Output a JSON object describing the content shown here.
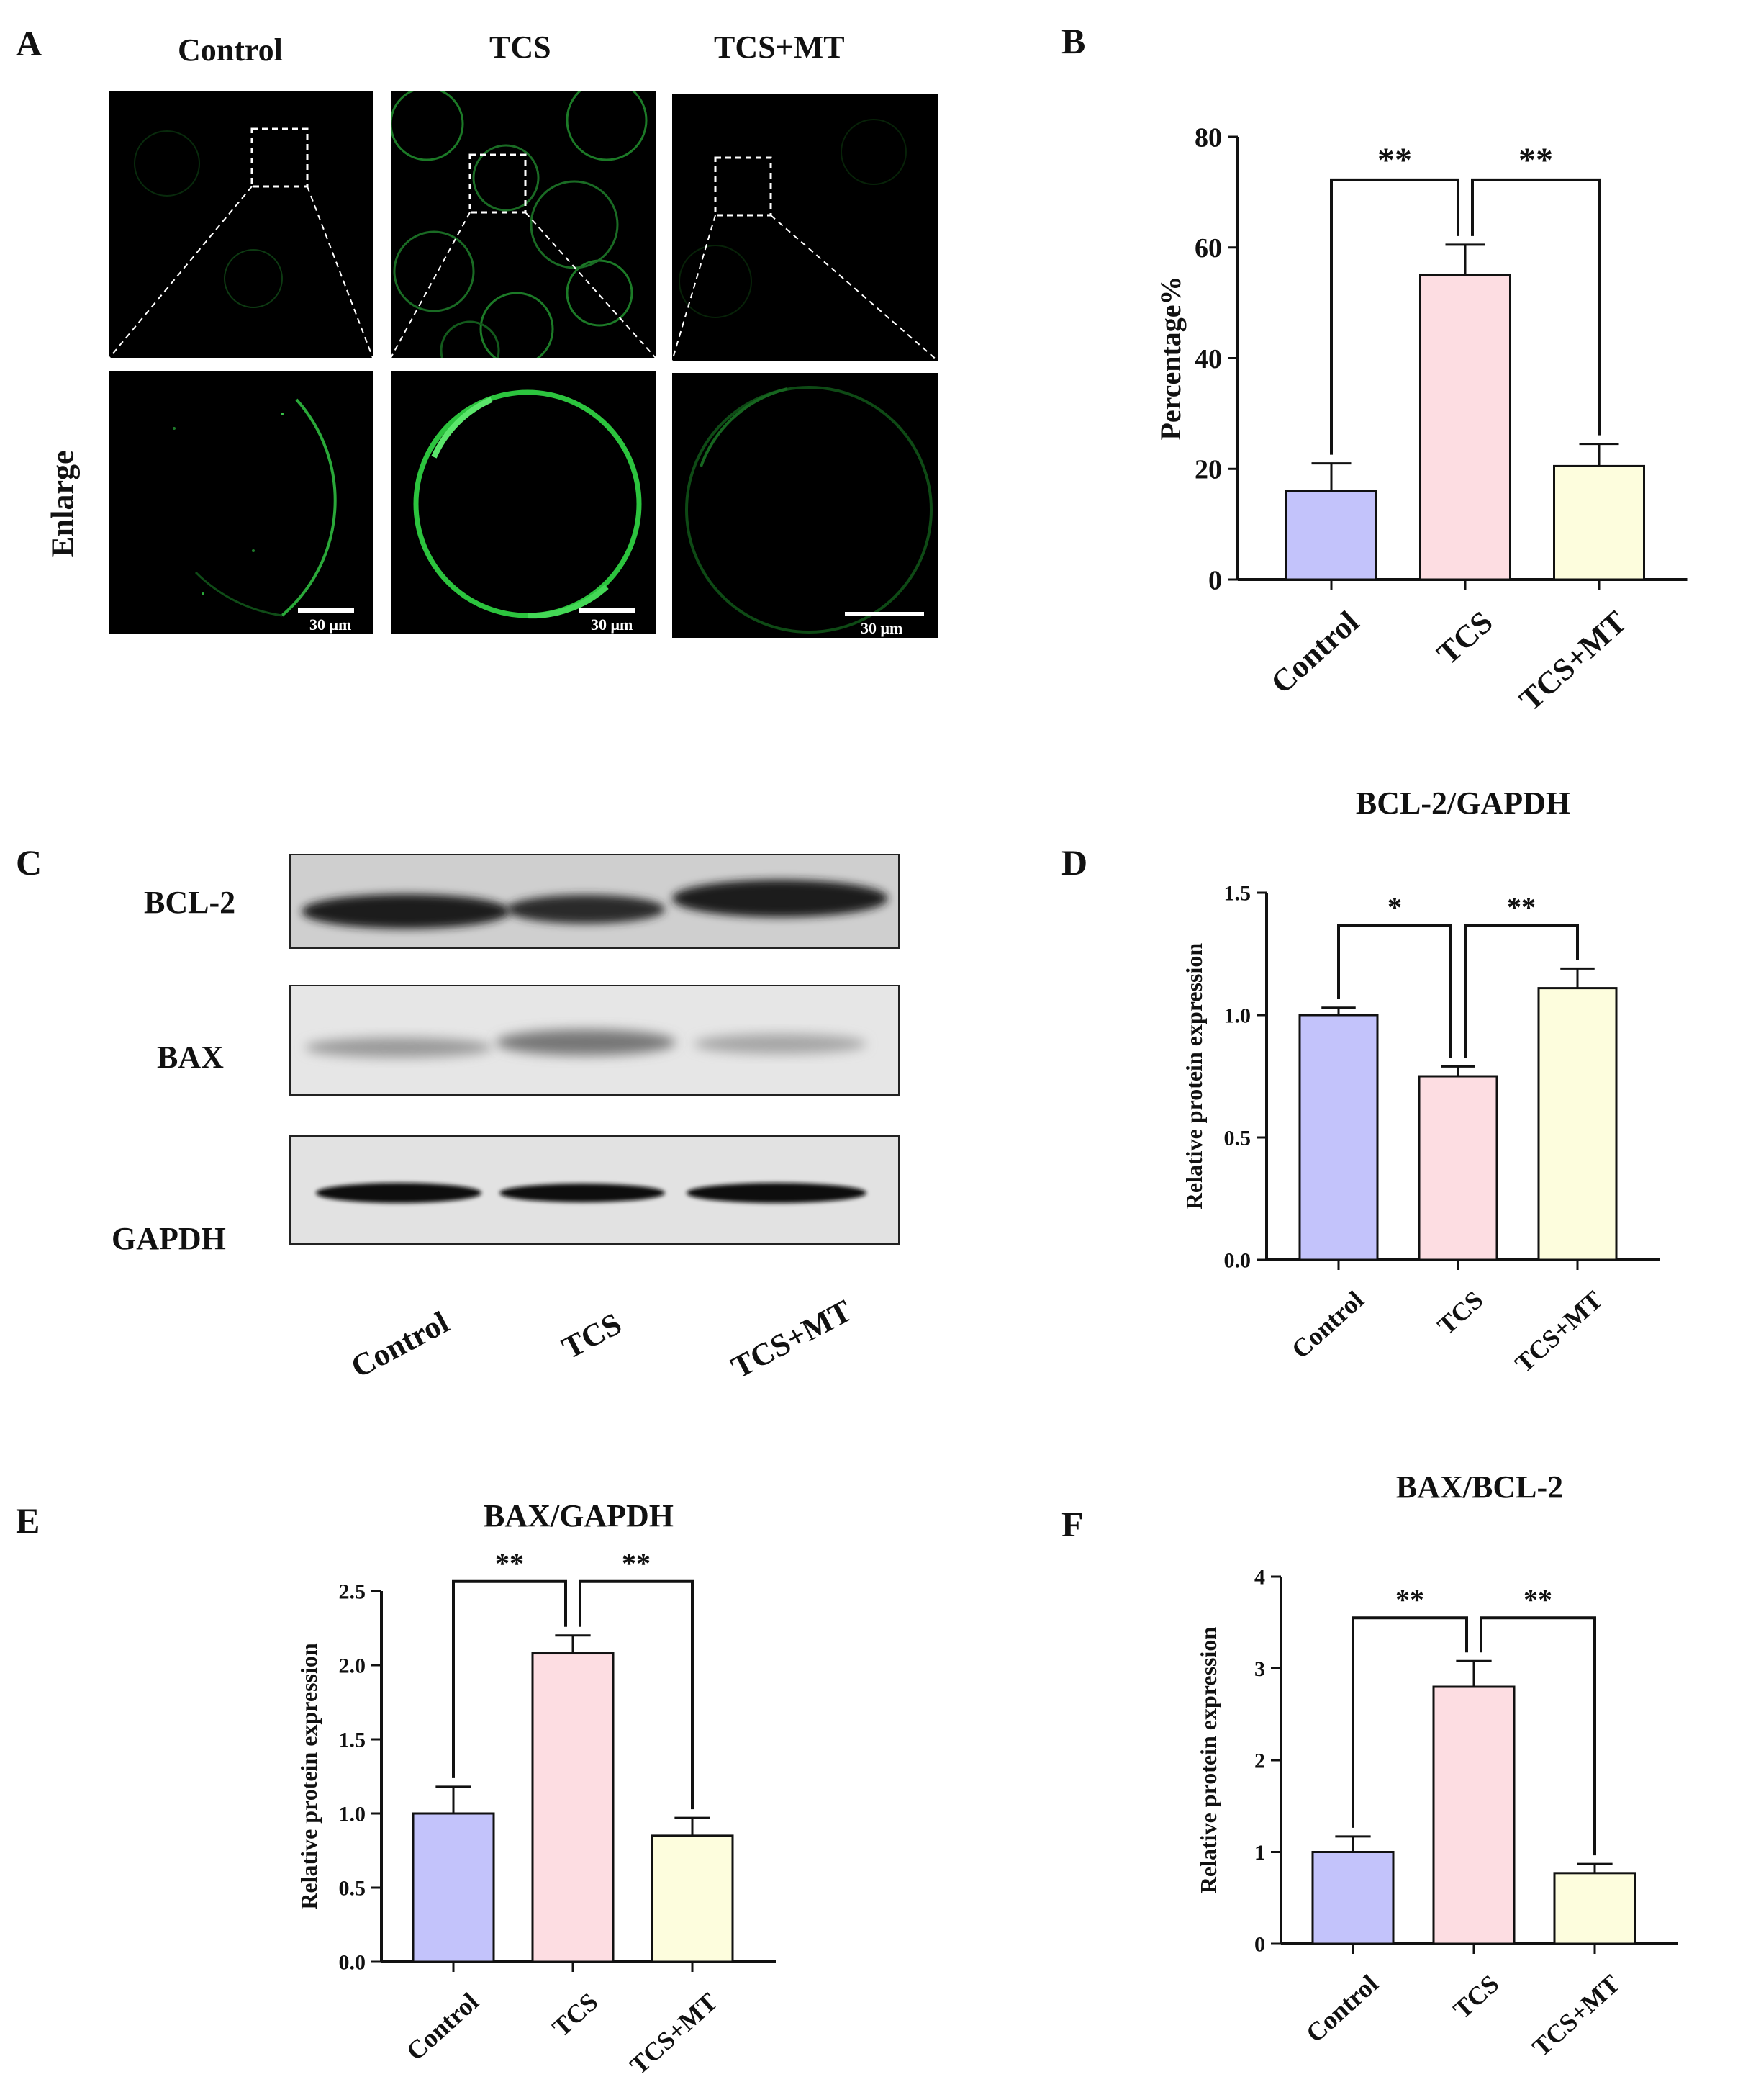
{
  "panels": {
    "A": {
      "letter": "A",
      "columns": [
        "Control",
        "TCS",
        "TCS+MT"
      ],
      "row_label": "Enlarge",
      "scale_bar": "30 μm"
    },
    "B": {
      "letter": "B"
    },
    "C": {
      "letter": "C",
      "bands": [
        "BCL-2",
        "BAX",
        "GAPDH"
      ],
      "lanes": [
        "Control",
        "TCS",
        "TCS+MT"
      ]
    },
    "D": {
      "letter": "D"
    },
    "E": {
      "letter": "E"
    },
    "F": {
      "letter": "F"
    }
  },
  "colors": {
    "Control": "#c3c3fb",
    "TCS": "#fddde2",
    "TCS+MT": "#fdfddd"
  },
  "chart_data": [
    {
      "id": "B",
      "type": "bar",
      "title": "",
      "categories": [
        "Control",
        "TCS",
        "TCS+MT"
      ],
      "values": [
        16,
        55,
        20.5
      ],
      "errors": [
        5,
        5.5,
        4
      ],
      "ylabel": "Percentage%",
      "ylim": [
        0,
        80
      ],
      "yticks": [
        "0",
        "20",
        "40",
        "60",
        "80"
      ],
      "significance": [
        {
          "from": 0,
          "to": 1,
          "label": "**"
        },
        {
          "from": 1,
          "to": 2,
          "label": "**"
        }
      ]
    },
    {
      "id": "D",
      "type": "bar",
      "title": "BCL-2/GAPDH",
      "categories": [
        "Control",
        "TCS",
        "TCS+MT"
      ],
      "values": [
        1.0,
        0.75,
        1.11
      ],
      "errors": [
        0.03,
        0.04,
        0.08
      ],
      "ylabel": "Relative protein expression",
      "ylim": [
        0,
        1.5
      ],
      "yticks": [
        "0.0",
        "0.5",
        "1.0",
        "1.5"
      ],
      "significance": [
        {
          "from": 0,
          "to": 1,
          "label": "*"
        },
        {
          "from": 1,
          "to": 2,
          "label": "**"
        }
      ]
    },
    {
      "id": "E",
      "type": "bar",
      "title": "BAX/GAPDH",
      "categories": [
        "Control",
        "TCS",
        "TCS+MT"
      ],
      "values": [
        1.0,
        2.08,
        0.85
      ],
      "errors": [
        0.18,
        0.12,
        0.12
      ],
      "ylabel": "Relative protein expression",
      "ylim": [
        0,
        2.5
      ],
      "yticks": [
        "0.0",
        "0.5",
        "1.0",
        "1.5",
        "2.0",
        "2.5"
      ],
      "significance": [
        {
          "from": 0,
          "to": 1,
          "label": "**"
        },
        {
          "from": 1,
          "to": 2,
          "label": "**"
        }
      ]
    },
    {
      "id": "F",
      "type": "bar",
      "title": "BAX/BCL-2",
      "categories": [
        "Control",
        "TCS",
        "TCS+MT"
      ],
      "values": [
        1.0,
        2.8,
        0.77
      ],
      "errors": [
        0.17,
        0.28,
        0.1
      ],
      "ylabel": "Relative protein expression",
      "ylim": [
        0,
        4
      ],
      "yticks": [
        "0",
        "1",
        "2",
        "3",
        "4"
      ],
      "significance": [
        {
          "from": 0,
          "to": 1,
          "label": "**"
        },
        {
          "from": 1,
          "to": 2,
          "label": "**"
        }
      ]
    }
  ]
}
